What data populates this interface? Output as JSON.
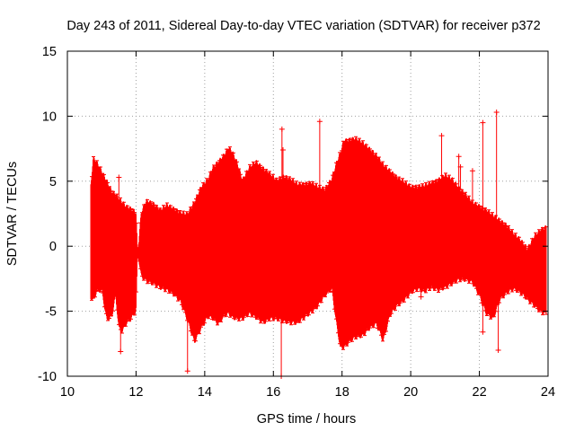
{
  "chart_data": {
    "type": "scatter",
    "title": "Day 243 of 2011, Sidereal Day-to-day VTEC variation (SDTVAR) for receiver p372",
    "xlabel": "GPS time / hours",
    "ylabel": "SDTVAR / TECUs",
    "xlim": [
      10,
      24
    ],
    "ylim": [
      -10,
      15
    ],
    "xticks": [
      10,
      12,
      14,
      16,
      18,
      20,
      22,
      24
    ],
    "yticks": [
      -10,
      -5,
      0,
      5,
      10,
      15
    ],
    "grid": true,
    "series_color": "#ff0000",
    "envelope": {
      "x": [
        10.67,
        10.75,
        10.85,
        11.0,
        11.15,
        11.3,
        11.4,
        11.5,
        11.6,
        11.7,
        11.85,
        12.0,
        12.05,
        12.15,
        12.3,
        12.5,
        12.7,
        12.9,
        13.1,
        13.3,
        13.5,
        13.7,
        13.9,
        14.1,
        14.25,
        14.4,
        14.55,
        14.7,
        14.8,
        14.95,
        15.1,
        15.3,
        15.5,
        15.7,
        15.9,
        16.1,
        16.3,
        16.5,
        16.7,
        16.9,
        17.1,
        17.3,
        17.5,
        17.7,
        17.85,
        17.95,
        18.05,
        18.2,
        18.4,
        18.6,
        18.8,
        19.0,
        19.2,
        19.4,
        19.6,
        19.8,
        20.0,
        20.2,
        20.4,
        20.6,
        20.8,
        21.0,
        21.2,
        21.4,
        21.6,
        21.8,
        22.0,
        22.2,
        22.4,
        22.6,
        22.8,
        23.0,
        23.2,
        23.4,
        23.6,
        23.8,
        23.95
      ],
      "upper": [
        4.3,
        6.8,
        6.5,
        5.8,
        5.0,
        4.2,
        4.0,
        3.7,
        3.4,
        3.1,
        2.9,
        2.6,
        -0.5,
        2.6,
        3.5,
        3.3,
        2.8,
        3.2,
        2.9,
        2.6,
        2.5,
        3.4,
        4.6,
        5.2,
        6.1,
        6.5,
        7.0,
        7.6,
        7.3,
        6.4,
        5.1,
        6.1,
        6.5,
        6.0,
        5.6,
        5.1,
        5.4,
        5.2,
        4.8,
        4.8,
        4.9,
        4.6,
        4.4,
        5.2,
        6.5,
        7.2,
        8.1,
        8.2,
        8.3,
        8.0,
        7.5,
        7.0,
        6.3,
        5.8,
        5.3,
        5.0,
        4.6,
        4.6,
        4.7,
        4.9,
        5.1,
        5.5,
        5.2,
        4.5,
        4.0,
        3.4,
        3.1,
        2.8,
        2.4,
        2.0,
        1.6,
        1.0,
        0.5,
        -0.2,
        0.8,
        1.3,
        1.5
      ],
      "lower": [
        -3.9,
        -4.2,
        -3.5,
        -3.4,
        -5.7,
        -5.4,
        -3.8,
        -6.3,
        -6.6,
        -6.0,
        -5.6,
        -5.0,
        -0.5,
        -2.3,
        -2.7,
        -2.9,
        -3.2,
        -3.4,
        -3.7,
        -4.3,
        -5.7,
        -7.4,
        -6.3,
        -5.4,
        -5.6,
        -6.0,
        -5.4,
        -5.2,
        -5.5,
        -5.6,
        -5.6,
        -5.2,
        -5.5,
        -5.9,
        -5.6,
        -5.6,
        -5.8,
        -5.9,
        -5.9,
        -5.5,
        -5.1,
        -4.6,
        -3.8,
        -3.3,
        -6.2,
        -7.8,
        -7.8,
        -7.4,
        -7.0,
        -6.9,
        -6.3,
        -6.0,
        -7.3,
        -5.3,
        -4.6,
        -4.2,
        -3.6,
        -3.3,
        -3.5,
        -3.2,
        -3.4,
        -3.2,
        -2.9,
        -2.6,
        -2.6,
        -2.8,
        -3.8,
        -5.2,
        -5.6,
        -4.1,
        -3.6,
        -3.3,
        -3.6,
        -4.1,
        -4.6,
        -5.1,
        -5.2
      ]
    },
    "outliers": {
      "x": [
        11.5,
        11.55,
        13.5,
        16.25,
        16.28,
        16.23,
        17.35,
        20.9,
        21.4,
        21.45,
        22.5,
        22.55,
        22.1,
        22.1,
        21.8,
        20.3,
        19.2,
        13.45
      ],
      "y": [
        5.3,
        -8.1,
        -9.6,
        9.0,
        7.4,
        -10.0,
        9.6,
        8.5,
        6.9,
        6.1,
        10.3,
        -8.0,
        9.5,
        -6.6,
        5.8,
        -3.9,
        -5.8,
        -3.6
      ]
    }
  }
}
